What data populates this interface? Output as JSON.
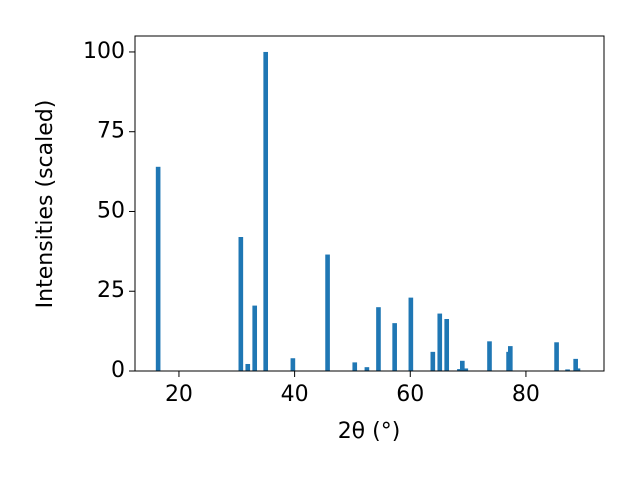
{
  "chart_data": {
    "type": "bar",
    "x_label": "2θ (°)",
    "y_label": "Intensities (scaled)",
    "x": [
      16.4,
      30.7,
      31.9,
      33.1,
      35.0,
      39.7,
      45.7,
      50.4,
      52.5,
      54.5,
      57.3,
      60.1,
      63.9,
      65.1,
      66.3,
      68.5,
      69.0,
      69.6,
      73.7,
      77.0,
      77.3,
      85.3,
      87.2,
      88.6,
      89.0
    ],
    "values": [
      64,
      42,
      2.2,
      20.5,
      100,
      4,
      36.5,
      2.7,
      1.2,
      20,
      15,
      23,
      6,
      18,
      16.3,
      0.6,
      3.2,
      0.8,
      9.3,
      6,
      7.8,
      9,
      0.5,
      3.8,
      0.8
    ],
    "color": "#1f77b4",
    "xlim": [
      12.4,
      93.5
    ],
    "xticks": [
      20,
      40,
      60,
      80
    ],
    "ylim": [
      0,
      105
    ],
    "yticks": [
      0,
      25,
      50,
      75,
      100
    ],
    "grid": false
  }
}
